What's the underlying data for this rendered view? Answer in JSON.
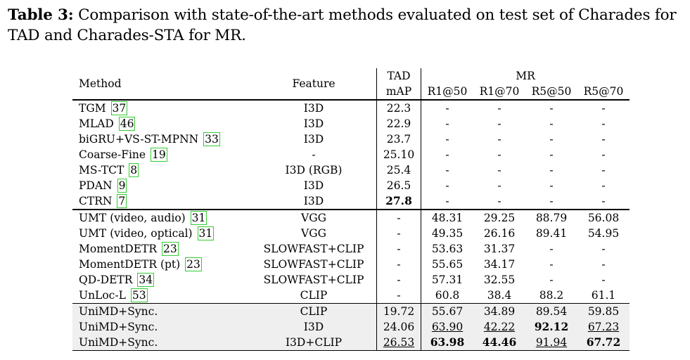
{
  "caption": {
    "label": "Table 3:",
    "text": " Comparison with state-of-the-art methods evaluated on test set of Charades for TAD and Charades-STA for MR."
  },
  "header": {
    "method": "Method",
    "feature": "Feature",
    "tad_group": "TAD",
    "tad_metric": "mAP",
    "mr_group": "MR",
    "mr_cols": [
      "R1@50",
      "R1@70",
      "R5@50",
      "R5@70"
    ]
  },
  "rows": [
    {
      "method": "TGM",
      "cite": "37",
      "feature": "I3D",
      "tad": "22.3",
      "r1_50": "-",
      "r1_70": "-",
      "r5_50": "-",
      "r5_70": "-"
    },
    {
      "method": "MLAD",
      "cite": "46",
      "feature": "I3D",
      "tad": "22.9",
      "r1_50": "-",
      "r1_70": "-",
      "r5_50": "-",
      "r5_70": "-"
    },
    {
      "method": "biGRU+VS-ST-MPNN",
      "cite": "33",
      "feature": "I3D",
      "tad": "23.7",
      "r1_50": "-",
      "r1_70": "-",
      "r5_50": "-",
      "r5_70": "-"
    },
    {
      "method": "Coarse-Fine",
      "cite": "19",
      "feature": "-",
      "tad": "25.10",
      "r1_50": "-",
      "r1_70": "-",
      "r5_50": "-",
      "r5_70": "-"
    },
    {
      "method": "MS-TCT",
      "cite": "8",
      "feature": "I3D (RGB)",
      "tad": "25.4",
      "r1_50": "-",
      "r1_70": "-",
      "r5_50": "-",
      "r5_70": "-"
    },
    {
      "method": "PDAN",
      "cite": "9",
      "feature": "I3D",
      "tad": "26.5",
      "r1_50": "-",
      "r1_70": "-",
      "r5_50": "-",
      "r5_70": "-"
    },
    {
      "method": "CTRN",
      "cite": "7",
      "feature": "I3D",
      "tad": "27.8",
      "r1_50": "-",
      "r1_70": "-",
      "r5_50": "-",
      "r5_70": "-"
    },
    {
      "method": "UMT (video, audio)",
      "cite": "31",
      "feature": "VGG",
      "tad": "-",
      "r1_50": "48.31",
      "r1_70": "29.25",
      "r5_50": "88.79",
      "r5_70": "56.08"
    },
    {
      "method": "UMT (video, optical)",
      "cite": "31",
      "feature": "VGG",
      "tad": "-",
      "r1_50": "49.35",
      "r1_70": "26.16",
      "r5_50": "89.41",
      "r5_70": "54.95"
    },
    {
      "method": "MomentDETR",
      "cite": "23",
      "feature": "SLOWFAST+CLIP",
      "tad": "-",
      "r1_50": "53.63",
      "r1_70": "31.37",
      "r5_50": "-",
      "r5_70": "-"
    },
    {
      "method": "MomentDETR (pt)",
      "cite": "23",
      "feature": "SLOWFAST+CLIP",
      "tad": "-",
      "r1_50": "55.65",
      "r1_70": "34.17",
      "r5_50": "-",
      "r5_70": "-"
    },
    {
      "method": "QD-DETR",
      "cite": "34",
      "feature": "SLOWFAST+CLIP",
      "tad": "-",
      "r1_50": "57.31",
      "r1_70": "32.55",
      "r5_50": "-",
      "r5_70": "-"
    },
    {
      "method": "UnLoc-L",
      "cite": "53",
      "feature": "CLIP",
      "tad": "-",
      "r1_50": "60.8",
      "r1_70": "38.4",
      "r5_50": "88.2",
      "r5_70": "61.1"
    },
    {
      "method": "UniMD+Sync.",
      "cite": "",
      "feature": "CLIP",
      "tad": "19.72",
      "r1_50": "55.67",
      "r1_70": "34.89",
      "r5_50": "89.54",
      "r5_70": "59.85"
    },
    {
      "method": "UniMD+Sync.",
      "cite": "",
      "feature": "I3D",
      "tad": "24.06",
      "r1_50": "63.90",
      "r1_70": "42.22",
      "r5_50": "92.12",
      "r5_70": "67.23"
    },
    {
      "method": "UniMD+Sync.",
      "cite": "",
      "feature": "I3D+CLIP",
      "tad": "26.53",
      "r1_50": "63.98",
      "r1_70": "44.46",
      "r5_50": "91.94",
      "r5_70": "67.72"
    }
  ]
}
